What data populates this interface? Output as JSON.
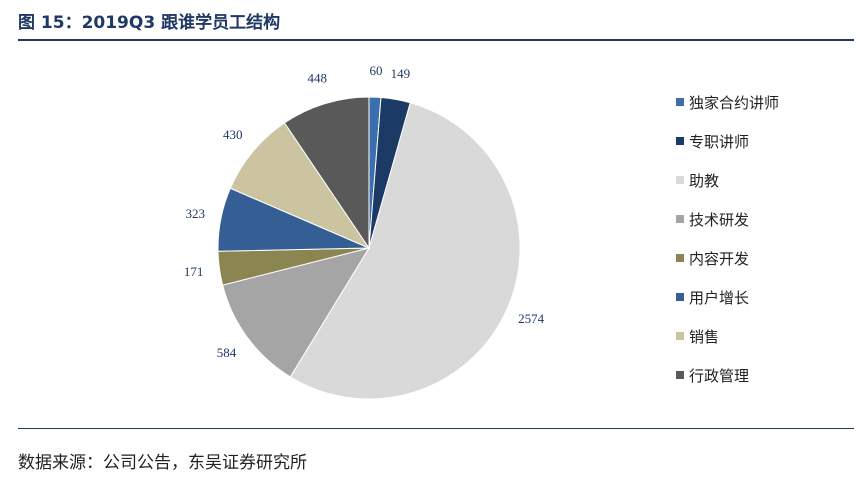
{
  "title": "图 15：2019Q3 跟谁学员工结构",
  "source": "数据来源：公司公告，东吴证券研究所",
  "chart_data": {
    "type": "pie",
    "categories": [
      "独家合约讲师",
      "专职讲师",
      "助教",
      "技术研发",
      "内容开发",
      "用户增长",
      "销售",
      "行政管理"
    ],
    "values": [
      60,
      149,
      2574,
      584,
      171,
      323,
      430,
      448
    ],
    "colors": [
      "#3b6fad",
      "#1b3a66",
      "#d9d9d9",
      "#a5a5a5",
      "#8b8552",
      "#355e95",
      "#ccc4a0",
      "#595959"
    ],
    "legend_position": "right"
  }
}
